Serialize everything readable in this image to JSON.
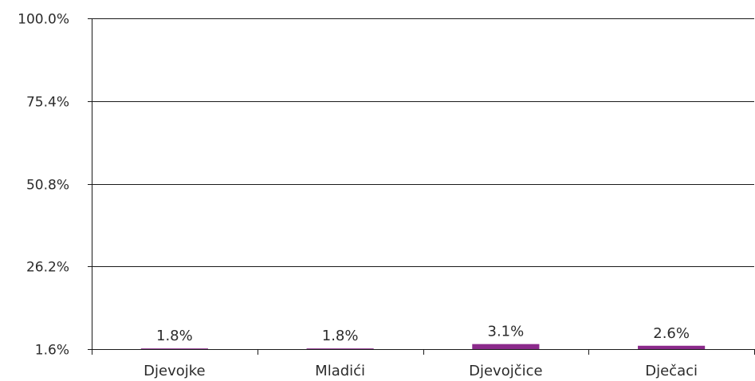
{
  "chart_data": {
    "type": "bar",
    "categories": [
      "Djevojke",
      "Mladići",
      "Djevojčice",
      "Dječaci"
    ],
    "values": [
      1.8,
      1.8,
      3.1,
      2.6
    ],
    "data_labels": [
      "1.8%",
      "1.8%",
      "3.1%",
      "2.6%"
    ],
    "ylim": [
      1.6,
      100.0
    ],
    "yticks": [
      1.6,
      26.2,
      50.8,
      75.4,
      100.0
    ],
    "ytick_labels": [
      "1.6%",
      "26.2%",
      "50.8%",
      "75.4%",
      "100.0%"
    ],
    "grid": true,
    "legend": "none",
    "bar_color": "#8b2a8b"
  }
}
